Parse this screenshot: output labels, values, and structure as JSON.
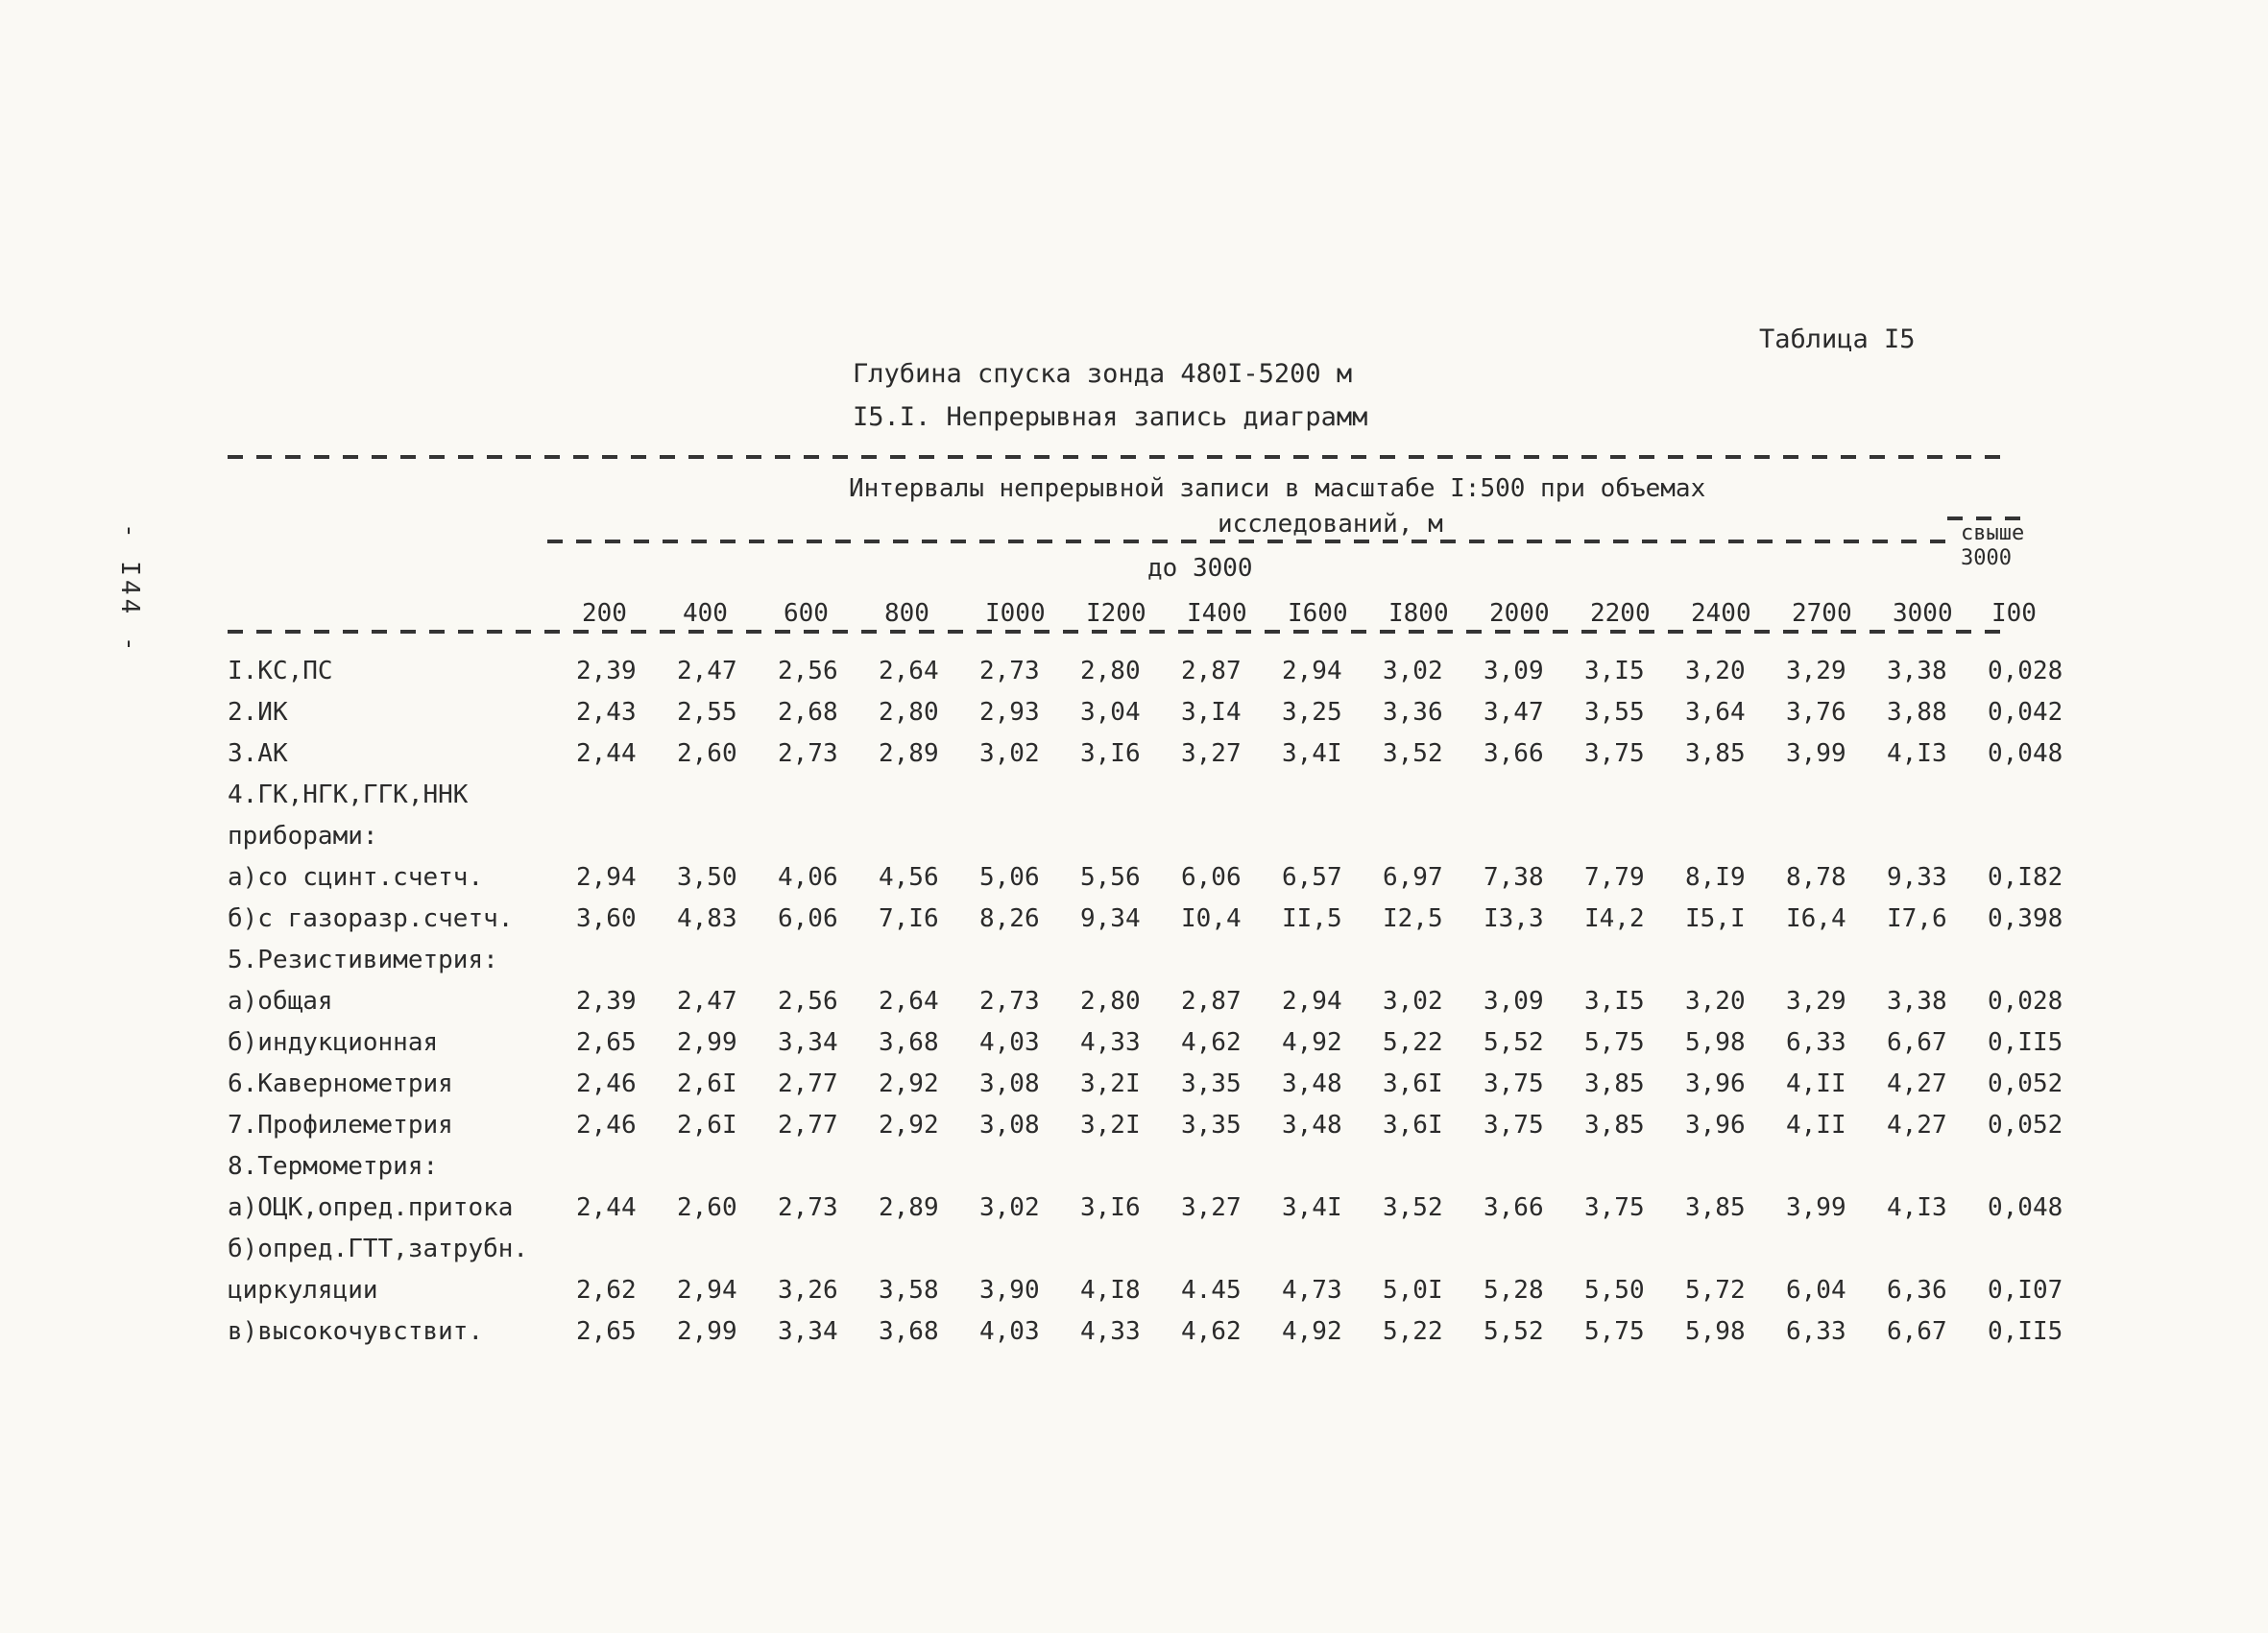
{
  "colors": {
    "paper": "#faf9f4",
    "ink": "#2b2b2b"
  },
  "page": {
    "table_caption": "Таблица I5",
    "title_line1": "Глубина спуска зонда 480I-5200 м",
    "title_line2": "I5.I. Непрерывная запись диаграмм",
    "page_number": "- I44 -"
  },
  "table": {
    "span_header_line1": "Интервалы непрерывной записи в масштабе I:500 при объемах",
    "span_header_line2": "исследований, м",
    "group_left": "до 3000",
    "group_right_line1": "свыше",
    "group_right_line2": "3000",
    "columns": [
      "200",
      "400",
      "600",
      "800",
      "I000",
      "I200",
      "I400",
      "I600",
      "I800",
      "2000",
      "2200",
      "2400",
      "2700",
      "3000",
      "I00"
    ],
    "lines": [
      {
        "label": "I.КС,ПС",
        "values": [
          "2,39",
          "2,47",
          "2,56",
          "2,64",
          "2,73",
          "2,80",
          "2,87",
          "2,94",
          "3,02",
          "3,09",
          "3,I5",
          "3,20",
          "3,29",
          "3,38",
          "0,028"
        ]
      },
      {
        "label": "2.ИК",
        "values": [
          "2,43",
          "2,55",
          "2,68",
          "2,80",
          "2,93",
          "3,04",
          "3,I4",
          "3,25",
          "3,36",
          "3,47",
          "3,55",
          "3,64",
          "3,76",
          "3,88",
          "0,042"
        ]
      },
      {
        "label": "3.АК",
        "values": [
          "2,44",
          "2,60",
          "2,73",
          "2,89",
          "3,02",
          "3,I6",
          "3,27",
          "3,4I",
          "3,52",
          "3,66",
          "3,75",
          "3,85",
          "3,99",
          "4,I3",
          "0,048"
        ]
      },
      {
        "label": "4.ГК,НГК,ГГК,ННК",
        "values": []
      },
      {
        "label": "приборами:",
        "values": []
      },
      {
        "label": "а)со сцинт.счетч.",
        "values": [
          "2,94",
          "3,50",
          "4,06",
          "4,56",
          "5,06",
          "5,56",
          "6,06",
          "6,57",
          "6,97",
          "7,38",
          "7,79",
          "8,I9",
          "8,78",
          "9,33",
          "0,I82"
        ]
      },
      {
        "label": "б)с газоразр.счетч.",
        "values": [
          "3,60",
          "4,83",
          "6,06",
          "7,I6",
          "8,26",
          "9,34",
          "I0,4",
          "II,5",
          "I2,5",
          "I3,3",
          "I4,2",
          "I5,I",
          "I6,4",
          "I7,6",
          "0,398"
        ]
      },
      {
        "label": "5.Резистивиметрия:",
        "values": []
      },
      {
        "label": "а)общая",
        "values": [
          "2,39",
          "2,47",
          "2,56",
          "2,64",
          "2,73",
          "2,80",
          "2,87",
          "2,94",
          "3,02",
          "3,09",
          "3,I5",
          "3,20",
          "3,29",
          "3,38",
          "0,028"
        ]
      },
      {
        "label": "б)индукционная",
        "values": [
          "2,65",
          "2,99",
          "3,34",
          "3,68",
          "4,03",
          "4,33",
          "4,62",
          "4,92",
          "5,22",
          "5,52",
          "5,75",
          "5,98",
          "6,33",
          "6,67",
          "0,II5"
        ]
      },
      {
        "label": "6.Кавернометрия",
        "values": [
          "2,46",
          "2,6I",
          "2,77",
          "2,92",
          "3,08",
          "3,2I",
          "3,35",
          "3,48",
          "3,6I",
          "3,75",
          "3,85",
          "3,96",
          "4,II",
          "4,27",
          "0,052"
        ]
      },
      {
        "label": "7.Профилеметрия",
        "values": [
          "2,46",
          "2,6I",
          "2,77",
          "2,92",
          "3,08",
          "3,2I",
          "3,35",
          "3,48",
          "3,6I",
          "3,75",
          "3,85",
          "3,96",
          "4,II",
          "4,27",
          "0,052"
        ]
      },
      {
        "label": "8.Термометрия:",
        "values": []
      },
      {
        "label": "а)ОЦК,опред.притока",
        "values": [
          "2,44",
          "2,60",
          "2,73",
          "2,89",
          "3,02",
          "3,I6",
          "3,27",
          "3,4I",
          "3,52",
          "3,66",
          "3,75",
          "3,85",
          "3,99",
          "4,I3",
          "0,048"
        ]
      },
      {
        "label": "б)опред.ГТТ,затрубн.",
        "values": []
      },
      {
        "label": "циркуляции",
        "values": [
          "2,62",
          "2,94",
          "3,26",
          "3,58",
          "3,90",
          "4,I8",
          "4.45",
          "4,73",
          "5,0I",
          "5,28",
          "5,50",
          "5,72",
          "6,04",
          "6,36",
          "0,I07"
        ]
      },
      {
        "label": "в)высокочувствит.",
        "values": [
          "2,65",
          "2,99",
          "3,34",
          "3,68",
          "4,03",
          "4,33",
          "4,62",
          "4,92",
          "5,22",
          "5,52",
          "5,75",
          "5,98",
          "6,33",
          "6,67",
          "0,II5"
        ]
      }
    ]
  }
}
